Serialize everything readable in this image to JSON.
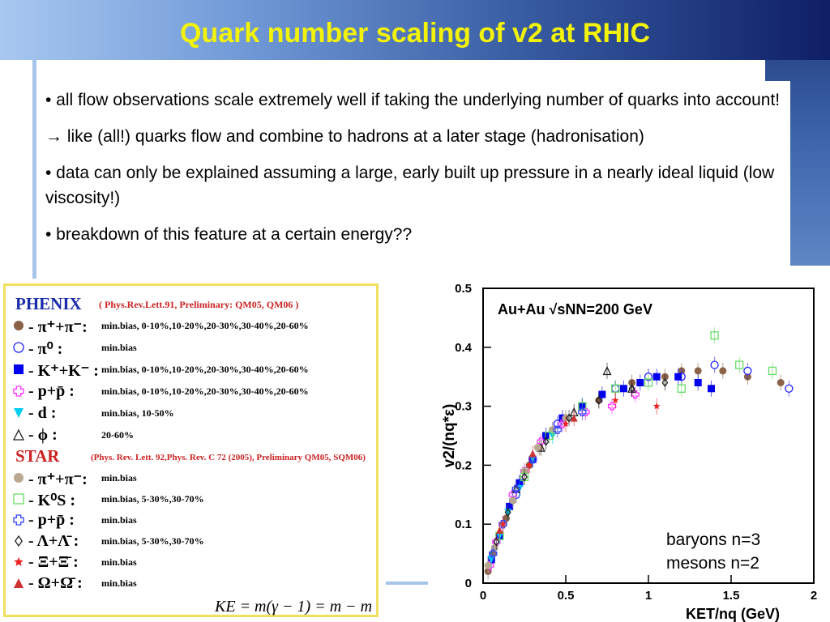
{
  "slide": {
    "title": "Quark number scaling of v2 at RHIC",
    "bullets": [
      "• all flow observations scale extremely well if taking the underlying number of quarks into account!",
      "→ like (all!) quarks flow and combine to hadrons at a later stage (hadronisation)",
      "• data can only be explained assuming a large, early built up pressure in a nearly ideal liquid (low viscosity!)",
      "• breakdown of this feature at a certain energy??"
    ],
    "formula": "KE",
    "formula_rest": " = m(γ − 1) = m − m",
    "annotation_line1": "baryons n=3",
    "annotation_line2": "mesons n=2"
  },
  "legend": {
    "phenix": {
      "name": "PHENIX",
      "ref": "( Phys.Rev.Lett.91, Preliminary: QM05, QM06 )",
      "rows": [
        {
          "label": "- π⁺+π⁻:",
          "desc": "min.bias, 0-10%,10-20%,20-30%,30-40%,20-60%",
          "color": "#8b6248",
          "symbol": "circle-filled"
        },
        {
          "label": "- π⁰ :",
          "desc": "min.bias",
          "color": "#2222ff",
          "symbol": "circle-open"
        },
        {
          "label": "- K⁺+K⁻ :",
          "desc": "min.bias, 0-10%,10-20%,20-30%,30-40%,20-60%",
          "color": "#0000ee",
          "symbol": "square-filled"
        },
        {
          "label": "- p+p̄ :",
          "desc": "min.bias, 0-10%,10-20%,20-30%,30-40%,20-60%",
          "color": "#ff33ff",
          "symbol": "cross-open"
        },
        {
          "label": "- d :",
          "desc": "min.bias, 10-50%",
          "color": "#00ccee",
          "symbol": "triangle-down"
        },
        {
          "label": "- ϕ :",
          "desc": "20-60%",
          "color": "#222222",
          "symbol": "triangle-open"
        }
      ]
    },
    "star": {
      "name": "STAR",
      "ref": "(Phys. Rev. Lett. 92,Phys. Rev. C 72 (2005), Preliminary QM05, SQM06)",
      "rows": [
        {
          "label": "- π⁺+π⁻:",
          "desc": "min.bias",
          "color": "#b8a890",
          "symbol": "circle-filled"
        },
        {
          "label": "- K⁰S :",
          "desc": "min.bias, 5-30%,30-70%",
          "color": "#66dd66",
          "symbol": "square-open"
        },
        {
          "label": "- p+p̄ :",
          "desc": "min.bias",
          "color": "#3344ff",
          "symbol": "cross-open"
        },
        {
          "label": "- Λ+Λ̄ :",
          "desc": "min.bias, 5-30%,30-70%",
          "color": "#222222",
          "symbol": "diamond-open"
        },
        {
          "label": "- Ξ+Ξ̄ :",
          "desc": "min.bias",
          "color": "#ee2222",
          "symbol": "star-filled"
        },
        {
          "label": "- Ω+Ω̄ :",
          "desc": "min.bias",
          "color": "#cc3333",
          "symbol": "triangle-filled"
        }
      ]
    }
  },
  "chart_data": {
    "type": "scatter",
    "title": "",
    "inset_label": "Au+Au √sNN=200 GeV",
    "xlabel": "KET/nq (GeV)",
    "ylabel": "v2/(nq*ε)",
    "xlim": [
      0,
      2
    ],
    "ylim": [
      0,
      0.5
    ],
    "xticks": [
      "0",
      "0.5",
      "1",
      "1.5",
      "2"
    ],
    "yticks": [
      "0",
      "0.1",
      "0.2",
      "0.3",
      "0.4",
      "0.5"
    ],
    "series": [
      {
        "name": "PHENIX π⁺+π⁻",
        "color": "#8b6248",
        "symbol": "circle-filled",
        "x": [
          0.03,
          0.06,
          0.1,
          0.14,
          0.18,
          0.22,
          0.28,
          0.34,
          0.42,
          0.5,
          0.6,
          0.7,
          0.8,
          0.9,
          1.0,
          1.1,
          1.2,
          1.3,
          1.45,
          1.6,
          1.8
        ],
        "y": [
          0.02,
          0.05,
          0.08,
          0.11,
          0.14,
          0.17,
          0.2,
          0.23,
          0.26,
          0.28,
          0.3,
          0.31,
          0.33,
          0.34,
          0.35,
          0.35,
          0.36,
          0.36,
          0.36,
          0.35,
          0.34
        ]
      },
      {
        "name": "PHENIX π⁰",
        "color": "#2222ff",
        "symbol": "circle-open",
        "x": [
          0.1,
          0.2,
          0.3,
          0.45,
          0.6,
          0.8,
          1.0,
          1.2,
          1.4,
          1.6,
          1.85
        ],
        "y": [
          0.08,
          0.15,
          0.21,
          0.27,
          0.3,
          0.33,
          0.35,
          0.35,
          0.37,
          0.36,
          0.33
        ]
      },
      {
        "name": "PHENIX K⁺+K⁻",
        "color": "#0000ee",
        "symbol": "square-filled",
        "x": [
          0.05,
          0.1,
          0.16,
          0.22,
          0.3,
          0.38,
          0.48,
          0.6,
          0.72,
          0.85,
          0.95,
          1.05,
          1.18,
          1.3,
          1.38
        ],
        "y": [
          0.04,
          0.08,
          0.13,
          0.17,
          0.21,
          0.25,
          0.28,
          0.3,
          0.32,
          0.33,
          0.34,
          0.35,
          0.35,
          0.34,
          0.33
        ]
      },
      {
        "name": "PHENIX p+p̄",
        "color": "#ff33ff",
        "symbol": "cross-open",
        "x": [
          0.04,
          0.08,
          0.12,
          0.18,
          0.25,
          0.35,
          0.48,
          0.62,
          0.78,
          0.92
        ],
        "y": [
          0.03,
          0.07,
          0.1,
          0.15,
          0.19,
          0.24,
          0.27,
          0.29,
          0.3,
          0.32
        ]
      },
      {
        "name": "PHENIX d",
        "color": "#00ccee",
        "symbol": "triangle-down",
        "x": [
          0.05,
          0.1,
          0.15,
          0.22,
          0.3,
          0.42
        ],
        "y": [
          0.04,
          0.08,
          0.12,
          0.16,
          0.21,
          0.25
        ]
      },
      {
        "name": "PHENIX ϕ",
        "color": "#222222",
        "symbol": "triangle-open",
        "x": [
          0.2,
          0.35,
          0.55,
          0.75,
          0.9
        ],
        "y": [
          0.16,
          0.23,
          0.29,
          0.36,
          0.33
        ]
      },
      {
        "name": "STAR π⁺+π⁻",
        "color": "#b8a890",
        "symbol": "circle-filled",
        "x": [
          0.03,
          0.07,
          0.12,
          0.18,
          0.25,
          0.33,
          0.42,
          0.5
        ],
        "y": [
          0.03,
          0.06,
          0.1,
          0.14,
          0.19,
          0.23,
          0.26,
          0.28
        ]
      },
      {
        "name": "STAR K⁰S",
        "color": "#66dd66",
        "symbol": "square-open",
        "x": [
          0.1,
          0.25,
          0.4,
          0.6,
          0.8,
          1.0,
          1.2,
          1.4,
          1.55,
          1.75
        ],
        "y": [
          0.08,
          0.18,
          0.25,
          0.3,
          0.33,
          0.34,
          0.33,
          0.42,
          0.37,
          0.36
        ]
      },
      {
        "name": "STAR p+p̄",
        "color": "#3344ff",
        "symbol": "cross-open",
        "x": [
          0.06,
          0.12,
          0.2,
          0.3,
          0.45,
          0.6
        ],
        "y": [
          0.05,
          0.1,
          0.16,
          0.21,
          0.26,
          0.29
        ]
      },
      {
        "name": "STAR Λ+Λ̄",
        "color": "#222222",
        "symbol": "diamond-open",
        "x": [
          0.08,
          0.15,
          0.25,
          0.38,
          0.52,
          0.7,
          0.9,
          1.1
        ],
        "y": [
          0.07,
          0.12,
          0.18,
          0.24,
          0.28,
          0.31,
          0.33,
          0.34
        ]
      },
      {
        "name": "STAR Ξ+Ξ̄",
        "color": "#ee2222",
        "symbol": "star-filled",
        "x": [
          0.12,
          0.28,
          0.5,
          0.8,
          1.05
        ],
        "y": [
          0.1,
          0.2,
          0.27,
          0.31,
          0.3
        ]
      },
      {
        "name": "STAR Ω+Ω̄",
        "color": "#cc3333",
        "symbol": "triangle-filled",
        "x": [
          0.1,
          0.3,
          0.55
        ],
        "y": [
          0.09,
          0.22,
          0.28
        ]
      }
    ]
  }
}
